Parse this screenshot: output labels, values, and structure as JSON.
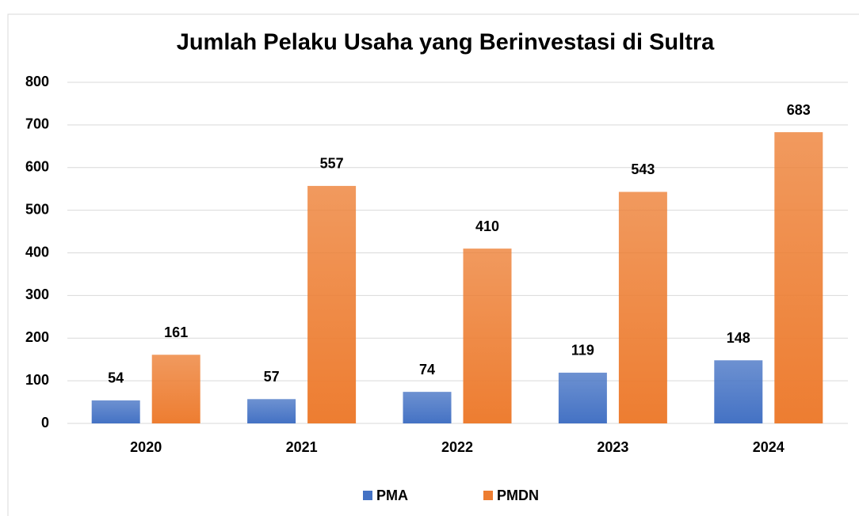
{
  "chart_data": {
    "type": "bar",
    "title": "Jumlah Pelaku Usaha yang Berinvestasi di Sultra",
    "categories": [
      "2020",
      "2021",
      "2022",
      "2023",
      "2024"
    ],
    "series": [
      {
        "name": "PMA",
        "color": "#4472c4",
        "values": [
          54,
          57,
          74,
          119,
          148
        ]
      },
      {
        "name": "PMDN",
        "color": "#ed7d31",
        "values": [
          161,
          557,
          410,
          543,
          683
        ]
      }
    ],
    "ylim": [
      0,
      800
    ],
    "yticks": [
      0,
      100,
      200,
      300,
      400,
      500,
      600,
      700,
      800
    ],
    "grid": true,
    "legend": "bottom"
  }
}
